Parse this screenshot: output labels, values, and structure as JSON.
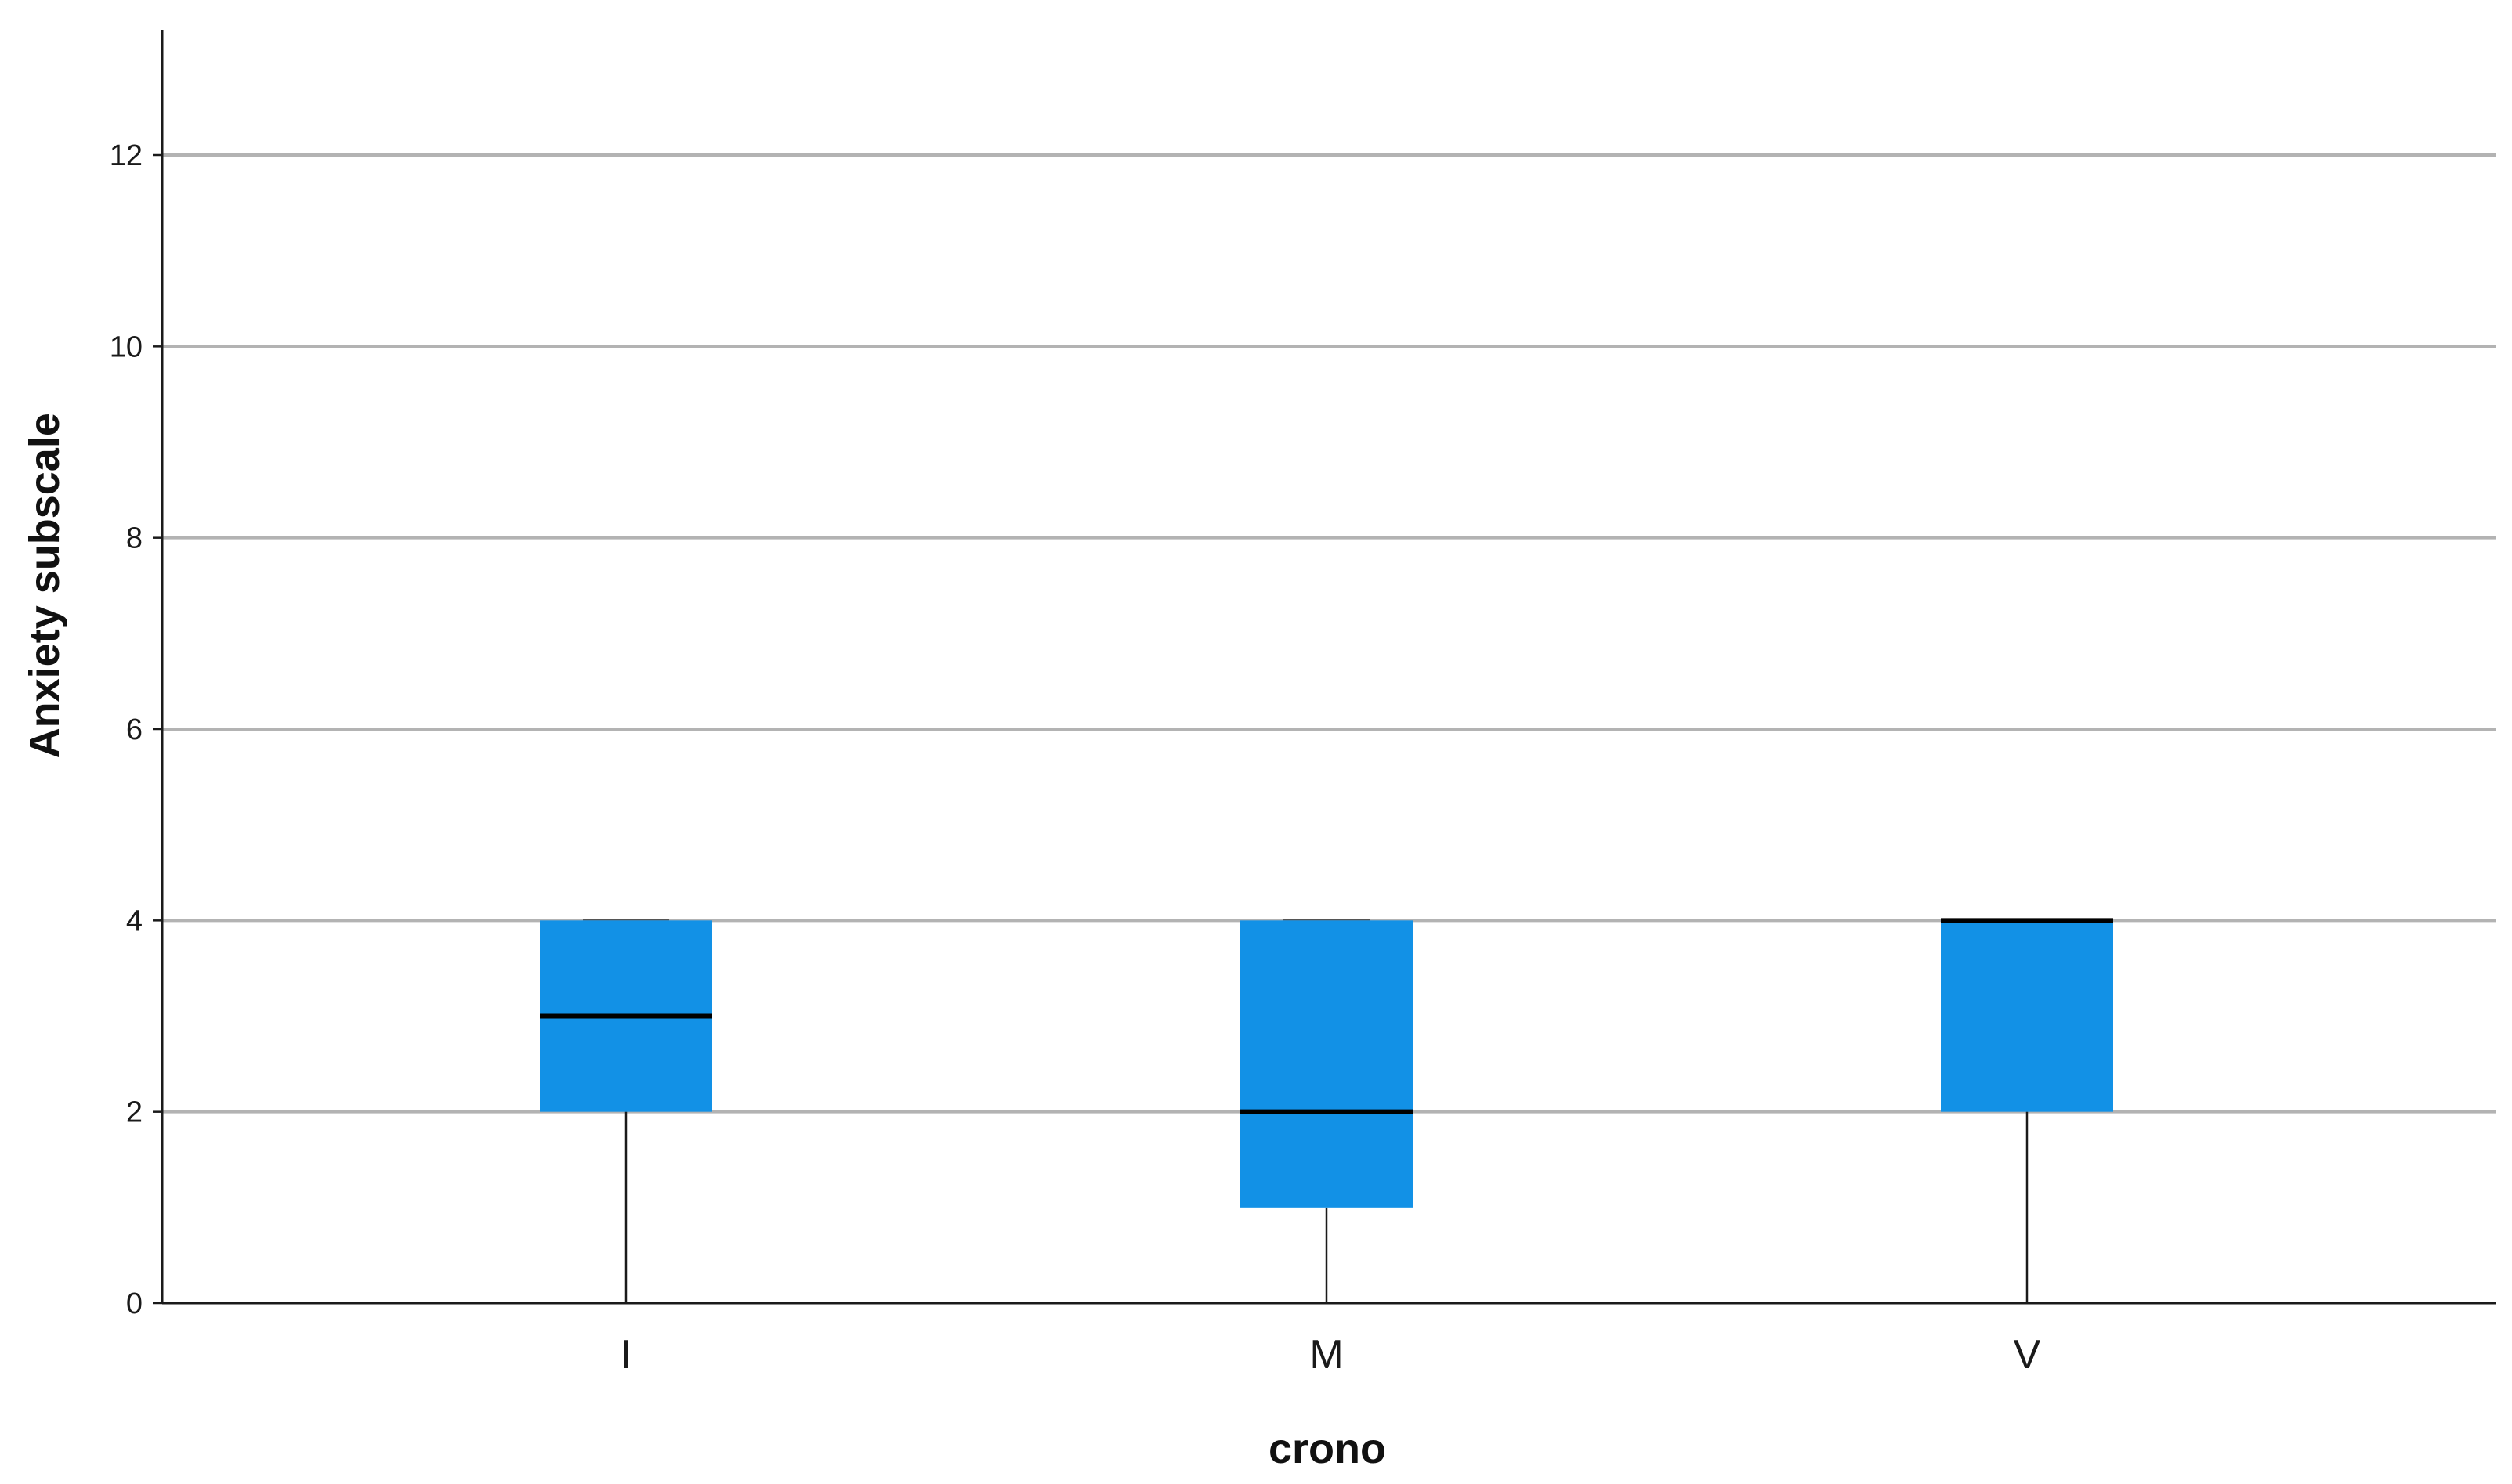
{
  "chart_data": {
    "type": "box",
    "xlabel": "crono",
    "ylabel": "Anxiety subscale",
    "ylim": [
      0,
      13.3
    ],
    "yticks": [
      0,
      2,
      4,
      6,
      8,
      10,
      12
    ],
    "grid": true,
    "categories": [
      "I",
      "M",
      "V"
    ],
    "boxes": [
      {
        "category": "I",
        "whisker_low": 0,
        "q1": 2,
        "median": 3,
        "q3": 4,
        "whisker_high": 4
      },
      {
        "category": "M",
        "whisker_low": 0,
        "q1": 1,
        "median": 2,
        "q3": 4,
        "whisker_high": 4
      },
      {
        "category": "V",
        "whisker_low": 0,
        "q1": 2,
        "median": 4,
        "q3": 4,
        "whisker_high": 4
      }
    ],
    "colors": {
      "box_fill": "#1291e6",
      "median": "#000000",
      "whisker": "#1a1a1a",
      "grid": "#b3b3b3",
      "axis": "#1a1a1a"
    }
  }
}
